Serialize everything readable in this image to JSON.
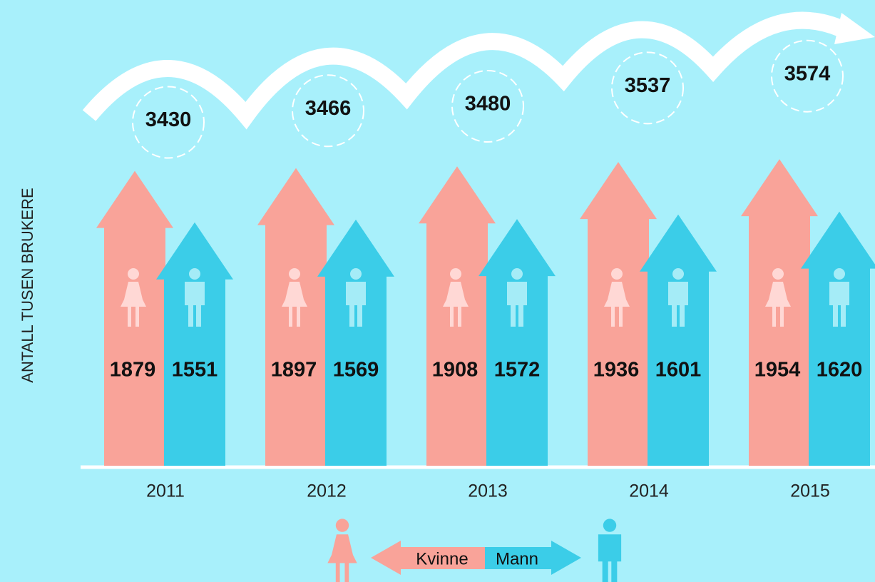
{
  "chart_data": {
    "type": "bar",
    "y_label": "ANTALL TUSEN BRUKERE",
    "categories": [
      "2011",
      "2012",
      "2013",
      "2014",
      "2015"
    ],
    "series": [
      {
        "name": "Kvinne",
        "color": "#f9a399",
        "values": [
          1879,
          1897,
          1908,
          1936,
          1954
        ]
      },
      {
        "name": "Mann",
        "color": "#3bcde8",
        "values": [
          1551,
          1569,
          1572,
          1601,
          1620
        ]
      }
    ],
    "totals": [
      3430,
      3466,
      3480,
      3537,
      3574
    ]
  }
}
